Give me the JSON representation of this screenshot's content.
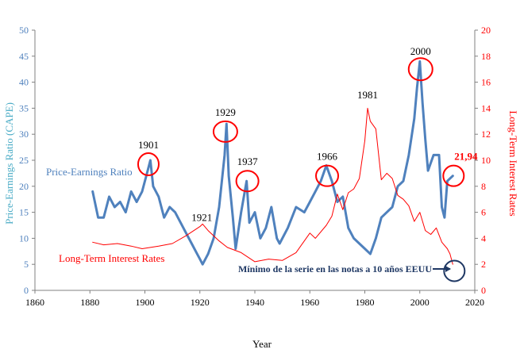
{
  "chart_data": {
    "type": "line",
    "title": "",
    "xlabel": "Year",
    "ylabel_left": "Price-Earnings Ratio (CAPE)",
    "ylabel_right": "Long-Term Interest Rates",
    "xlim": [
      1860,
      2020
    ],
    "ylim_left": [
      0,
      50
    ],
    "ylim_right": [
      0,
      20
    ],
    "x_ticks": [
      1860,
      1880,
      1900,
      1920,
      1940,
      1960,
      1980,
      2000,
      2020
    ],
    "y_ticks_left": [
      0,
      5,
      10,
      15,
      20,
      25,
      30,
      35,
      40,
      45,
      50
    ],
    "y_ticks_right": [
      0,
      2,
      4,
      6,
      8,
      10,
      12,
      14,
      16,
      18,
      20
    ],
    "grid": false,
    "colors": {
      "pe": "#4f81bd",
      "rates": "#ff0000",
      "left_axis_label": "#4bacc6",
      "circle": "#ff0000",
      "note": "#1f3864"
    },
    "series": [
      {
        "name": "Price-Earnings Ratio",
        "axis": "left",
        "color": "#4f81bd",
        "x": [
          1881,
          1883,
          1885,
          1887,
          1889,
          1891,
          1893,
          1895,
          1897,
          1899,
          1901,
          1902,
          1903,
          1905,
          1907,
          1909,
          1911,
          1913,
          1915,
          1917,
          1919,
          1920,
          1921,
          1923,
          1925,
          1927,
          1929,
          1929.7,
          1930.5,
          1932,
          1933,
          1935,
          1937,
          1938,
          1940,
          1942,
          1944,
          1946,
          1948,
          1949,
          1952,
          1955,
          1958,
          1960,
          1962,
          1964,
          1966,
          1968,
          1970,
          1972,
          1974,
          1976,
          1978,
          1980,
          1982,
          1984,
          1986,
          1988,
          1990,
          1992,
          1994,
          1996,
          1998,
          1999,
          2000,
          2001,
          2002,
          2003,
          2005,
          2007,
          2008,
          2009,
          2010,
          2012
        ],
        "y": [
          19,
          14,
          14,
          18,
          16,
          17,
          15,
          19,
          17,
          19,
          23,
          25,
          20,
          18,
          14,
          16,
          15,
          13,
          11,
          9,
          7,
          6,
          5,
          7,
          10,
          16,
          26,
          32,
          22,
          14,
          8,
          15,
          21,
          13,
          15,
          10,
          12,
          16,
          10,
          9,
          12,
          16,
          15,
          17,
          19,
          21,
          24,
          21,
          17,
          18,
          12,
          10,
          9,
          8,
          7,
          10,
          14,
          15,
          16,
          20,
          21,
          26,
          33,
          39,
          44,
          36,
          29,
          23,
          26,
          26,
          16,
          14,
          21,
          22
        ]
      },
      {
        "name": "Long-Term Interest Rates",
        "axis": "right",
        "color": "#ff0000",
        "x": [
          1881,
          1885,
          1890,
          1895,
          1899,
          1905,
          1910,
          1915,
          1920,
          1921,
          1923,
          1927,
          1930,
          1935,
          1940,
          1945,
          1950,
          1955,
          1958,
          1960,
          1962,
          1966,
          1968,
          1970,
          1972,
          1974,
          1976,
          1978,
          1980,
          1981,
          1982,
          1984,
          1986,
          1988,
          1990,
          1992,
          1994,
          1996,
          1998,
          2000,
          2002,
          2004,
          2006,
          2008,
          2010,
          2011,
          2012
        ],
        "y": [
          3.7,
          3.5,
          3.6,
          3.4,
          3.2,
          3.4,
          3.6,
          4.2,
          4.9,
          5.1,
          4.6,
          3.8,
          3.3,
          2.9,
          2.2,
          2.4,
          2.3,
          2.9,
          3.8,
          4.4,
          4.0,
          5.0,
          5.7,
          7.4,
          6.2,
          7.5,
          7.8,
          8.6,
          11.5,
          14.0,
          13.0,
          12.4,
          8.5,
          9.0,
          8.6,
          7.3,
          7.0,
          6.5,
          5.3,
          6.0,
          4.6,
          4.3,
          4.8,
          3.7,
          3.2,
          2.8,
          2.0
        ]
      }
    ],
    "legend_entries": [
      {
        "text": "Price-Earnings Ratio",
        "color": "#4f81bd"
      },
      {
        "text": "Long-Term Interest Rates",
        "color": "#ff0000"
      }
    ],
    "annotations": [
      {
        "text": "1901",
        "x": 1901,
        "y": 25,
        "axis": "left"
      },
      {
        "text": "1921",
        "x": 1921,
        "y": 6,
        "axis": "left"
      },
      {
        "text": "1929",
        "x": 1929,
        "y": 30.5,
        "axis": "left"
      },
      {
        "text": "1937",
        "x": 1937,
        "y": 21,
        "axis": "left"
      },
      {
        "text": "1966",
        "x": 1966,
        "y": 22,
        "axis": "left"
      },
      {
        "text": "1981",
        "x": 1981,
        "y": 14.5,
        "axis": "right"
      },
      {
        "text": "2000",
        "x": 2000,
        "y": 42.5,
        "axis": "left"
      },
      {
        "text": "21,94",
        "x": 2012,
        "y": 22,
        "axis": "left"
      },
      {
        "text": "Mínimo de la serie en las notas a 10 años EEUU",
        "x": 2012,
        "y": 1.8,
        "axis": "right"
      }
    ]
  }
}
